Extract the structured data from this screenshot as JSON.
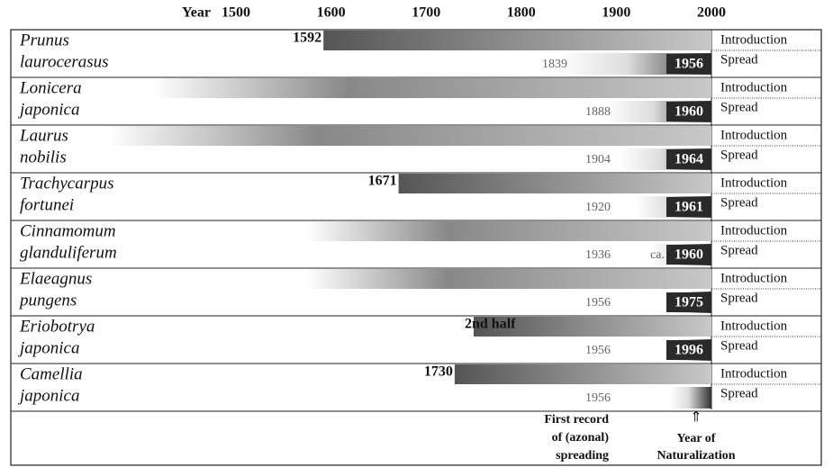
{
  "chart_data": {
    "type": "timeline",
    "x_label": "Year",
    "xlim": [
      1500,
      2000
    ],
    "xticks": [
      1500,
      1600,
      1700,
      1800,
      1900,
      2000
    ],
    "row_labels": [
      "Introduction",
      "Spread"
    ],
    "species": [
      {
        "name": [
          "Prunus",
          "laurocerasus"
        ],
        "introduction": 1592,
        "spread": 1839,
        "naturalization": 1956
      },
      {
        "name": [
          "Lonicera",
          "japonica"
        ],
        "introduction": null,
        "spread": 1888,
        "naturalization": 1960
      },
      {
        "name": [
          "Laurus",
          "nobilis"
        ],
        "introduction": null,
        "spread": 1904,
        "naturalization": 1964
      },
      {
        "name": [
          "Trachycarpus",
          "fortunei"
        ],
        "introduction": 1671,
        "spread": 1920,
        "naturalization": 1961
      },
      {
        "name": [
          "Cinnamomum",
          "glanduliferum"
        ],
        "introduction": null,
        "spread": 1936,
        "naturalization": 1960,
        "naturalization_prefix": "ca."
      },
      {
        "name": [
          "Elaeagnus",
          "pungens"
        ],
        "introduction": null,
        "spread": 1956,
        "naturalization": 1975
      },
      {
        "name": [
          "Eriobotrya",
          "japonica"
        ],
        "introduction": {
          "value": 1750,
          "label": "2nd half"
        },
        "spread": 1956,
        "naturalization": 1996
      },
      {
        "name": [
          "Camellia",
          "japonica"
        ],
        "introduction": 1730,
        "spread": 1956,
        "naturalization": null
      }
    ],
    "footer": {
      "first_record": [
        "First record",
        "of (azonal)",
        "spreading"
      ],
      "naturalization": [
        "Year of",
        "Naturalization"
      ]
    }
  }
}
